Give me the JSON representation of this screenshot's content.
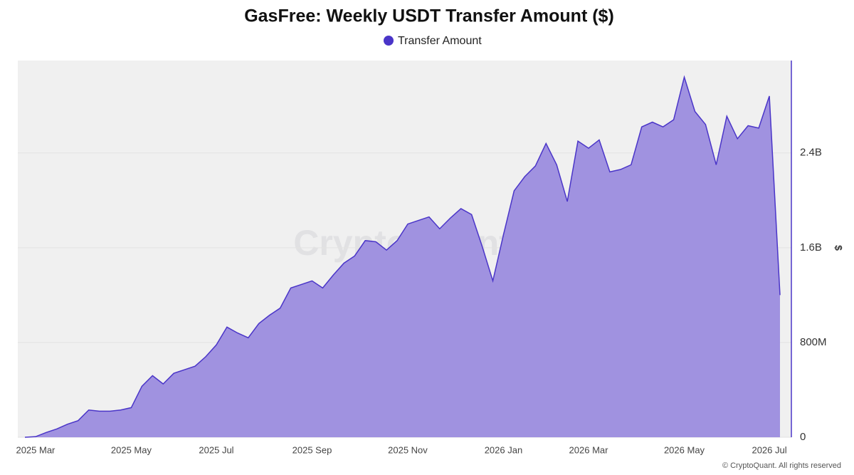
{
  "chart_data": {
    "type": "area",
    "title": "GasFree: Weekly USDT Transfer Amount ($)",
    "y_label": "$",
    "watermark": "CryptoQuant",
    "source": "© CryptoQuant. All rights reserved",
    "legend": "top",
    "grid": true,
    "y_axis_side": "right",
    "categories": [
      null,
      "2025 Mar",
      null,
      null,
      null,
      null,
      null,
      null,
      null,
      null,
      "2025 May",
      null,
      null,
      null,
      null,
      null,
      null,
      null,
      "2025 Jul",
      null,
      null,
      null,
      null,
      null,
      null,
      null,
      null,
      "2025 Sep",
      null,
      null,
      null,
      null,
      null,
      null,
      null,
      null,
      "2025 Nov",
      null,
      null,
      null,
      null,
      null,
      null,
      null,
      null,
      "2026 Jan",
      null,
      null,
      null,
      null,
      null,
      null,
      null,
      "2026 Mar",
      null,
      null,
      null,
      null,
      null,
      null,
      null,
      null,
      "2026 May",
      null,
      null,
      null,
      null,
      null,
      null,
      null,
      "2026 Jul",
      null
    ],
    "series": [
      {
        "name": "Transfer Amount",
        "color": "#4a35c8",
        "fill": "#a092e0",
        "values": [
          0,
          5000000.0,
          40000000.0,
          70000000.0,
          110000000.0,
          140000000.0,
          230000000.0,
          220000000.0,
          220000000.0,
          230000000.0,
          250000000.0,
          430000000.0,
          520000000.0,
          450000000.0,
          540000000.0,
          570000000.0,
          600000000.0,
          680000000.0,
          780000000.0,
          930000000.0,
          880000000.0,
          840000000.0,
          960000000.0,
          1030000000.0,
          1090000000.0,
          1260000000.0,
          1290000000.0,
          1320000000.0,
          1260000000.0,
          1370000000.0,
          1470000000.0,
          1530000000.0,
          1660000000.0,
          1650000000.0,
          1580000000.0,
          1660000000.0,
          1800000000.0,
          1830000000.0,
          1860000000.0,
          1760000000.0,
          1850000000.0,
          1930000000.0,
          1880000000.0,
          1610000000.0,
          1320000000.0,
          1710000000.0,
          2080000000.0,
          2200000000.0,
          2290000000.0,
          2480000000.0,
          2300000000.0,
          1990000000.0,
          2500000000.0,
          2440000000.0,
          2510000000.0,
          2240000000.0,
          2260000000.0,
          2300000000.0,
          2620000000.0,
          2660000000.0,
          2620000000.0,
          2680000000.0,
          3040000000.0,
          2750000000.0,
          2640000000.0,
          2300000000.0,
          2710000000.0,
          2520000000.0,
          2630000000.0,
          2610000000.0,
          2880000000.0,
          1200000000.0
        ]
      }
    ],
    "ylim": [
      0,
      3180000000.0
    ],
    "yticks": [
      0,
      {
        "value": 800000000,
        "label": "800M"
      },
      {
        "value": 1600000000,
        "label": "1.6B"
      },
      {
        "value": 2400000000,
        "label": "2.4B"
      }
    ]
  }
}
